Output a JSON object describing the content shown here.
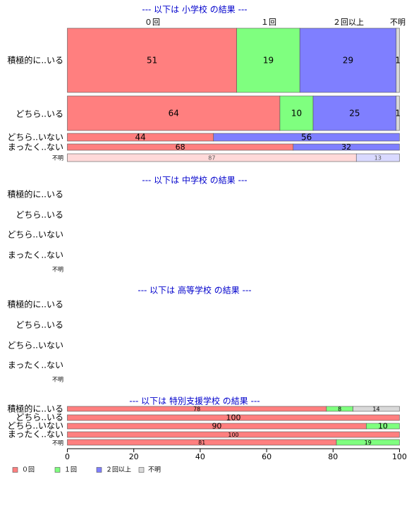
{
  "colors": {
    "zero": "#FF7F7F",
    "once": "#7FFF7F",
    "twice_plus": "#7F7FFF",
    "unknown": "#D9D9D9",
    "heading": "#0000CC",
    "bar_border": "#555555",
    "unknown_row_zero": "#FFD9D9",
    "unknown_row_once": "#D9FFD9",
    "unknown_row_twice": "#D9D9FF"
  },
  "chart_data": {
    "type": "bar",
    "orientation": "horizontal",
    "stacked": true,
    "x_ticks": [
      0,
      20,
      40,
      60,
      80,
      100
    ],
    "xlim": [
      0,
      100
    ],
    "col_headers": [
      "０回",
      "１回",
      "２回以上",
      "不明"
    ],
    "legend": [
      "０回",
      "１回",
      "２回以上",
      "不明"
    ],
    "legend_position": "bottom-left",
    "grid": false,
    "row_labels": [
      "積極的に..いる",
      "どちら..いる",
      "どちら..いない",
      "まったく..ない",
      "不明"
    ],
    "panels": [
      {
        "title": "--- 以下は 小学校 の結果 ---",
        "rows": [
          {
            "label": "積極的に..いる",
            "values": [
              51,
              19,
              29,
              1
            ]
          },
          {
            "label": "どちら..いる",
            "values": [
              64,
              10,
              25,
              1
            ]
          },
          {
            "label": "どちら..いない",
            "values": [
              44,
              0,
              56,
              0
            ]
          },
          {
            "label": "まったく..ない",
            "values": [
              68,
              0,
              32,
              0
            ]
          },
          {
            "label": "不明",
            "values": [
              87,
              0,
              13,
              0
            ]
          }
        ]
      },
      {
        "title": "--- 以下は 中学校 の結果 ---",
        "rows": [
          {
            "label": "積極的に..いる",
            "values": []
          },
          {
            "label": "どちら..いる",
            "values": []
          },
          {
            "label": "どちら..いない",
            "values": []
          },
          {
            "label": "まったく..ない",
            "values": []
          },
          {
            "label": "不明",
            "values": []
          }
        ]
      },
      {
        "title": "--- 以下は 高等学校 の結果 ---",
        "rows": [
          {
            "label": "積極的に..いる",
            "values": []
          },
          {
            "label": "どちら..いる",
            "values": []
          },
          {
            "label": "どちら..いない",
            "values": []
          },
          {
            "label": "まったく..ない",
            "values": []
          },
          {
            "label": "不明",
            "values": []
          }
        ]
      },
      {
        "title": "--- 以下は 特別支援学校 の結果 ---",
        "rows": [
          {
            "label": "積極的に..いる",
            "values": [
              78,
              8,
              0,
              14
            ]
          },
          {
            "label": "どちら..いる",
            "values": [
              100,
              0,
              0,
              0
            ]
          },
          {
            "label": "どちら..いない",
            "values": [
              90,
              10,
              0,
              0
            ]
          },
          {
            "label": "まったく..ない",
            "values": [
              100,
              0,
              0,
              0
            ]
          },
          {
            "label": "不明",
            "values": [
              81,
              19,
              0,
              0
            ]
          }
        ]
      }
    ]
  }
}
